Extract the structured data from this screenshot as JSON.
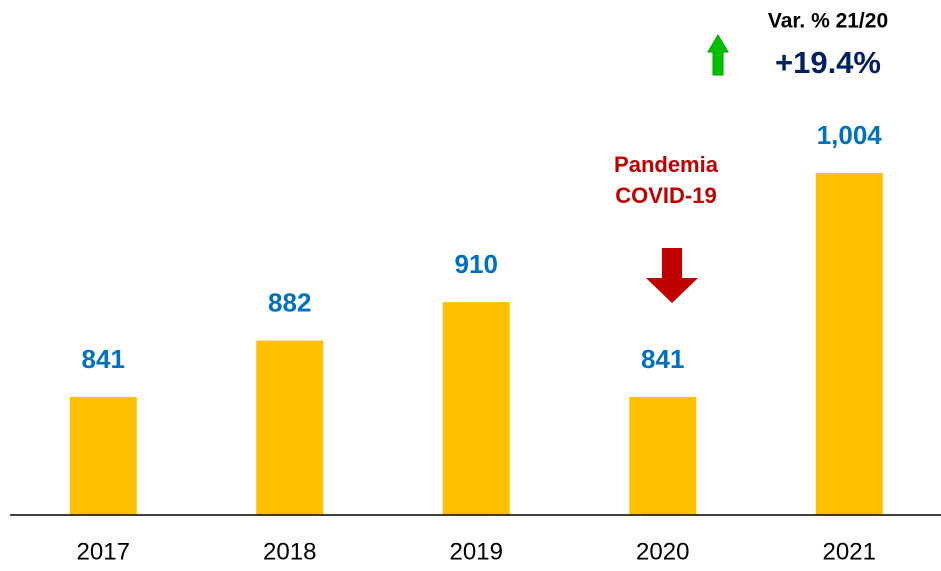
{
  "chart_data": {
    "type": "bar",
    "categories": [
      "2017",
      "2018",
      "2019",
      "2020",
      "2021"
    ],
    "values": [
      841,
      882,
      910,
      841,
      1004
    ],
    "value_labels": [
      "841",
      "882",
      "910",
      "841",
      "1,004"
    ],
    "color": "#FFC000",
    "label_color": "#0070C0",
    "ylim": [
      755,
      1130
    ],
    "annotations": {
      "variation_label": "Var. % 21/20",
      "variation_value": "+19.4%",
      "event": [
        "Pandemia",
        "COVID-19"
      ]
    }
  }
}
